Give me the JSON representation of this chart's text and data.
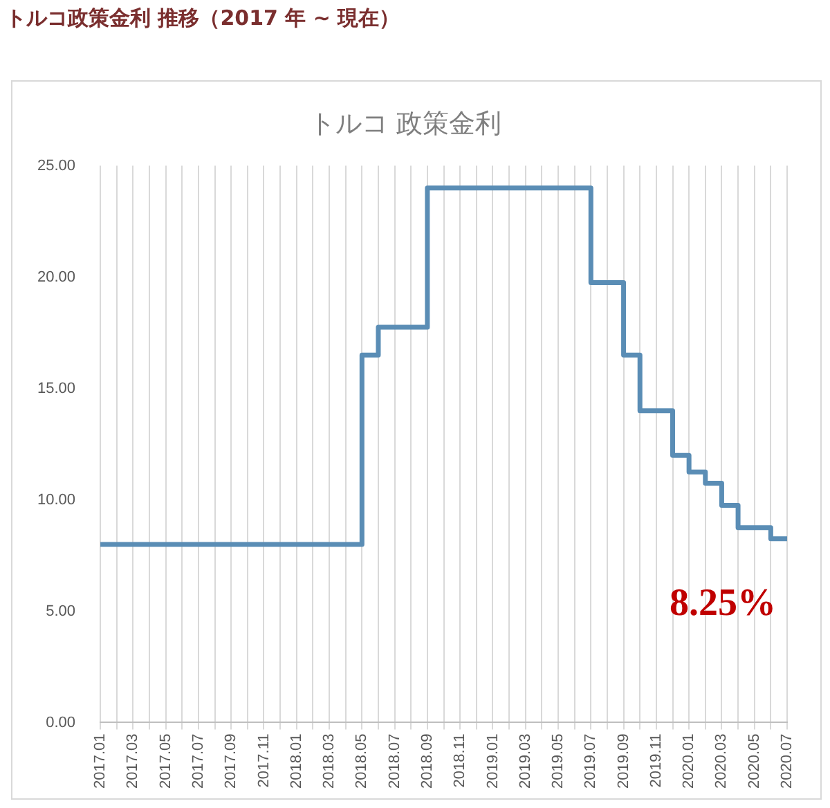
{
  "chart_data": {
    "type": "step",
    "title": "トルコ政策金利 推移（2017 年 ~ 現在）",
    "subtitle": "トルコ 政策金利",
    "categories": [
      "2017.01",
      null,
      "2017.03",
      null,
      "2017.05",
      null,
      "2017.07",
      null,
      "2017.09",
      null,
      "2017.11",
      null,
      "2018.01",
      null,
      "2018.03",
      null,
      "2018.05",
      null,
      "2018.07",
      null,
      "2018.09",
      null,
      "2018.11",
      null,
      "2019.01",
      null,
      "2019.03",
      null,
      "2019.05",
      null,
      "2019.07",
      null,
      "2019.09",
      null,
      "2019.11",
      null,
      "2020.01",
      null,
      "2020.03",
      null,
      "2020.05",
      null,
      "2020.07"
    ],
    "series": [
      {
        "color": "#5a8db5",
        "values": [
          8,
          8,
          8,
          8,
          8,
          8,
          8,
          8,
          8,
          8,
          8,
          8,
          8,
          8,
          8,
          8,
          16.5,
          17.75,
          17.75,
          17.75,
          24,
          24,
          24,
          24,
          24,
          24,
          24,
          24,
          24,
          24,
          19.75,
          19.75,
          16.5,
          14,
          14,
          12,
          11.25,
          10.75,
          9.75,
          8.75,
          8.75,
          8.25,
          8.25
        ]
      }
    ],
    "ylim": [
      0,
      25
    ],
    "yticks": [
      {
        "value": 0,
        "label": "0.00"
      },
      {
        "value": 5,
        "label": "5.00"
      },
      {
        "value": 10,
        "label": "10.00"
      },
      {
        "value": 15,
        "label": "15.00"
      },
      {
        "value": 20,
        "label": "20.00"
      },
      {
        "value": 25,
        "label": "25.00"
      }
    ],
    "grid": "x",
    "legend": false,
    "annotations": [
      {
        "text": "8.25%",
        "x": "2020.07",
        "y": 8.25
      }
    ]
  }
}
